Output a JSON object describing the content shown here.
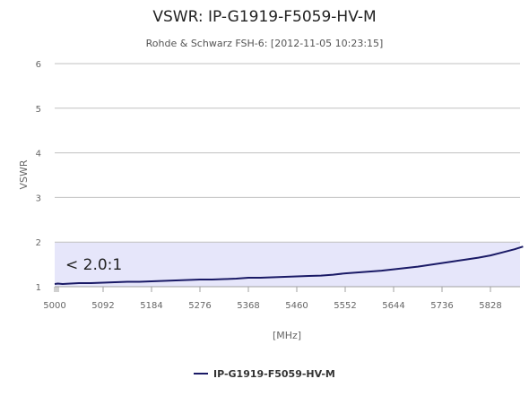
{
  "chart_data": {
    "type": "line",
    "title": "VSWR: IP-G1919-F5059-HV-M",
    "subtitle": "Rohde & Schwarz FSH-6: [2012-11-05 10:23:15]",
    "xlabel": "[MHz]",
    "ylabel": "VSWR",
    "xlim": [
      5000,
      5890
    ],
    "ylim": [
      1,
      6
    ],
    "x_ticks": [
      "5000",
      "5092",
      "5184",
      "5276",
      "5368",
      "5460",
      "5552",
      "5644",
      "5736",
      "5828"
    ],
    "y_ticks": [
      "1",
      "2",
      "3",
      "4",
      "5",
      "6"
    ],
    "grid": "horizontal",
    "legend_position": "bottom-center",
    "plot_band": {
      "from": 1,
      "to": 2,
      "label": "< 2.0:1",
      "color": "#e6e6fa"
    },
    "series": [
      {
        "name": "IP-G1919-F5059-HV-M",
        "color": "#1a1a66",
        "x": [
          5000,
          5006,
          5015,
          5030,
          5046,
          5069,
          5092,
          5115,
          5138,
          5161,
          5184,
          5207,
          5230,
          5253,
          5276,
          5299,
          5322,
          5345,
          5368,
          5391,
          5414,
          5437,
          5460,
          5483,
          5506,
          5529,
          5552,
          5575,
          5598,
          5621,
          5644,
          5667,
          5690,
          5713,
          5736,
          5759,
          5782,
          5805,
          5828,
          5851,
          5874,
          5890
        ],
        "y": [
          1.06,
          1.07,
          1.06,
          1.07,
          1.08,
          1.08,
          1.09,
          1.1,
          1.11,
          1.11,
          1.12,
          1.13,
          1.14,
          1.15,
          1.16,
          1.16,
          1.17,
          1.18,
          1.2,
          1.2,
          1.21,
          1.22,
          1.23,
          1.24,
          1.25,
          1.27,
          1.3,
          1.32,
          1.34,
          1.36,
          1.39,
          1.42,
          1.45,
          1.49,
          1.53,
          1.57,
          1.61,
          1.65,
          1.7,
          1.77,
          1.84,
          1.9
        ]
      }
    ]
  }
}
